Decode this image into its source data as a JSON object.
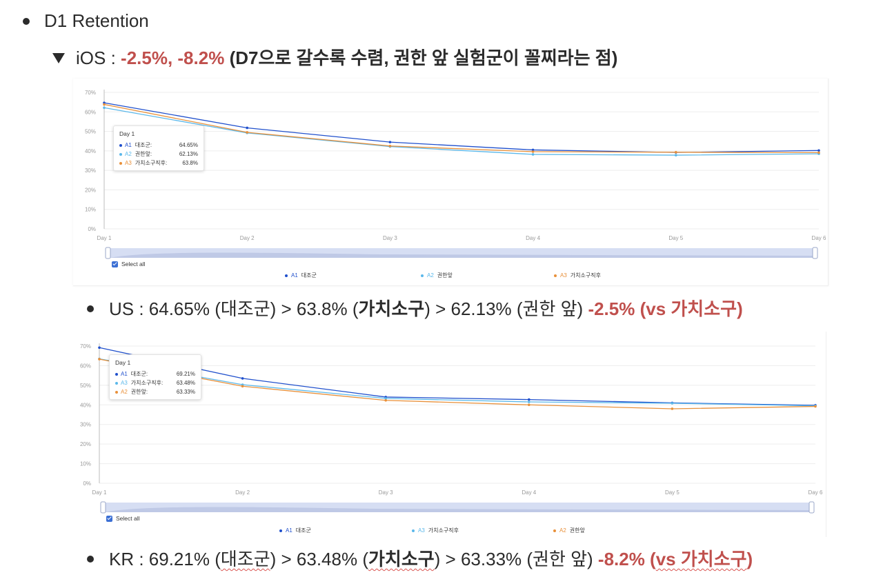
{
  "heading": {
    "label": "D1 Retention"
  },
  "ios": {
    "label": "iOS :",
    "red": "-2.5%, -8.2%",
    "note": "(D7으로 갈수록 수렴, 권한 앞 실험군이 꼴찌라는 점)"
  },
  "colors": {
    "a1": "#1f4fcc",
    "a2": "#5bb8ea",
    "a3": "#e8903a",
    "red": "#c0504d"
  },
  "chart_ios": {
    "tooltip": {
      "title": "Day 1",
      "rows": [
        {
          "code": "A1",
          "name": "대조군:",
          "value": "64.65%"
        },
        {
          "code": "A2",
          "name": "권한앞:",
          "value": "62.13%"
        },
        {
          "code": "A3",
          "name": "가치소구직후:",
          "value": "63.8%"
        }
      ]
    },
    "select_all": "Select all",
    "legend": [
      {
        "code": "A1",
        "name": "대조군"
      },
      {
        "code": "A2",
        "name": "권한앞"
      },
      {
        "code": "A3",
        "name": "가치소구직후"
      }
    ]
  },
  "us": {
    "label": "US : 64.65% (대조군) > 63.8% (",
    "bold": "가치소구",
    "after": ") > 62.13% (권한 앞)",
    "red": "-2.5% (vs 가치소구)"
  },
  "chart_kr": {
    "tooltip": {
      "title": "Day 1",
      "rows": [
        {
          "code": "A1",
          "name": "대조군:",
          "value": "69.21%"
        },
        {
          "code": "A3",
          "name": "가치소구직후:",
          "value": "63.48%"
        },
        {
          "code": "A2",
          "name": "권한앞:",
          "value": "63.33%"
        }
      ]
    },
    "select_all": "Select all",
    "legend": [
      {
        "code": "A1",
        "name": "대조군"
      },
      {
        "code": "A3",
        "name": "가치소구직후"
      },
      {
        "code": "A2",
        "name": "권한앞"
      }
    ]
  },
  "kr": {
    "label_a": "KR : 69.21% (",
    "squig1": "대조군",
    "label_b": ") > 63.48% (",
    "bold": "가치소구",
    "after": ") > 63.33% (권한 앞)",
    "red_a": "-8.2% (",
    "red_squig": "vs 가치소구",
    "red_b": ")"
  },
  "chart_data": [
    {
      "type": "line",
      "x": [
        "Day 1",
        "Day 2",
        "Day 3",
        "Day 4",
        "Day 5",
        "Day 6"
      ],
      "yticks": [
        "0%",
        "10%",
        "20%",
        "30%",
        "40%",
        "50%",
        "60%",
        "70%"
      ],
      "ylim": [
        0,
        70
      ],
      "series": [
        {
          "name": "A1 대조군",
          "color": "#1f4fcc",
          "values": [
            64.65,
            51.8,
            44.5,
            40.5,
            39.2,
            40.2
          ]
        },
        {
          "name": "A2 권한앞",
          "color": "#5bb8ea",
          "values": [
            62.13,
            49.2,
            42.2,
            38.2,
            37.8,
            38.5
          ]
        },
        {
          "name": "A3 가치소구직후",
          "color": "#e8903a",
          "values": [
            63.8,
            49.5,
            42.5,
            39.6,
            39.3,
            39.1
          ]
        }
      ]
    },
    {
      "type": "line",
      "x": [
        "Day 1",
        "Day 2",
        "Day 3",
        "Day 4",
        "Day 5",
        "Day 6"
      ],
      "yticks": [
        "0%",
        "10%",
        "20%",
        "30%",
        "40%",
        "50%",
        "60%",
        "70%"
      ],
      "ylim": [
        0,
        70
      ],
      "series": [
        {
          "name": "A1 대조군",
          "color": "#1f4fcc",
          "values": [
            69.21,
            53.5,
            44.0,
            42.7,
            41.0,
            39.8
          ]
        },
        {
          "name": "A3 가치소구직후",
          "color": "#5bb8ea",
          "values": [
            63.48,
            50.3,
            43.3,
            41.5,
            40.8,
            39.5
          ]
        },
        {
          "name": "A2 권한앞",
          "color": "#e8903a",
          "values": [
            63.33,
            49.5,
            42.3,
            40.0,
            38.0,
            39.2
          ]
        }
      ]
    }
  ]
}
